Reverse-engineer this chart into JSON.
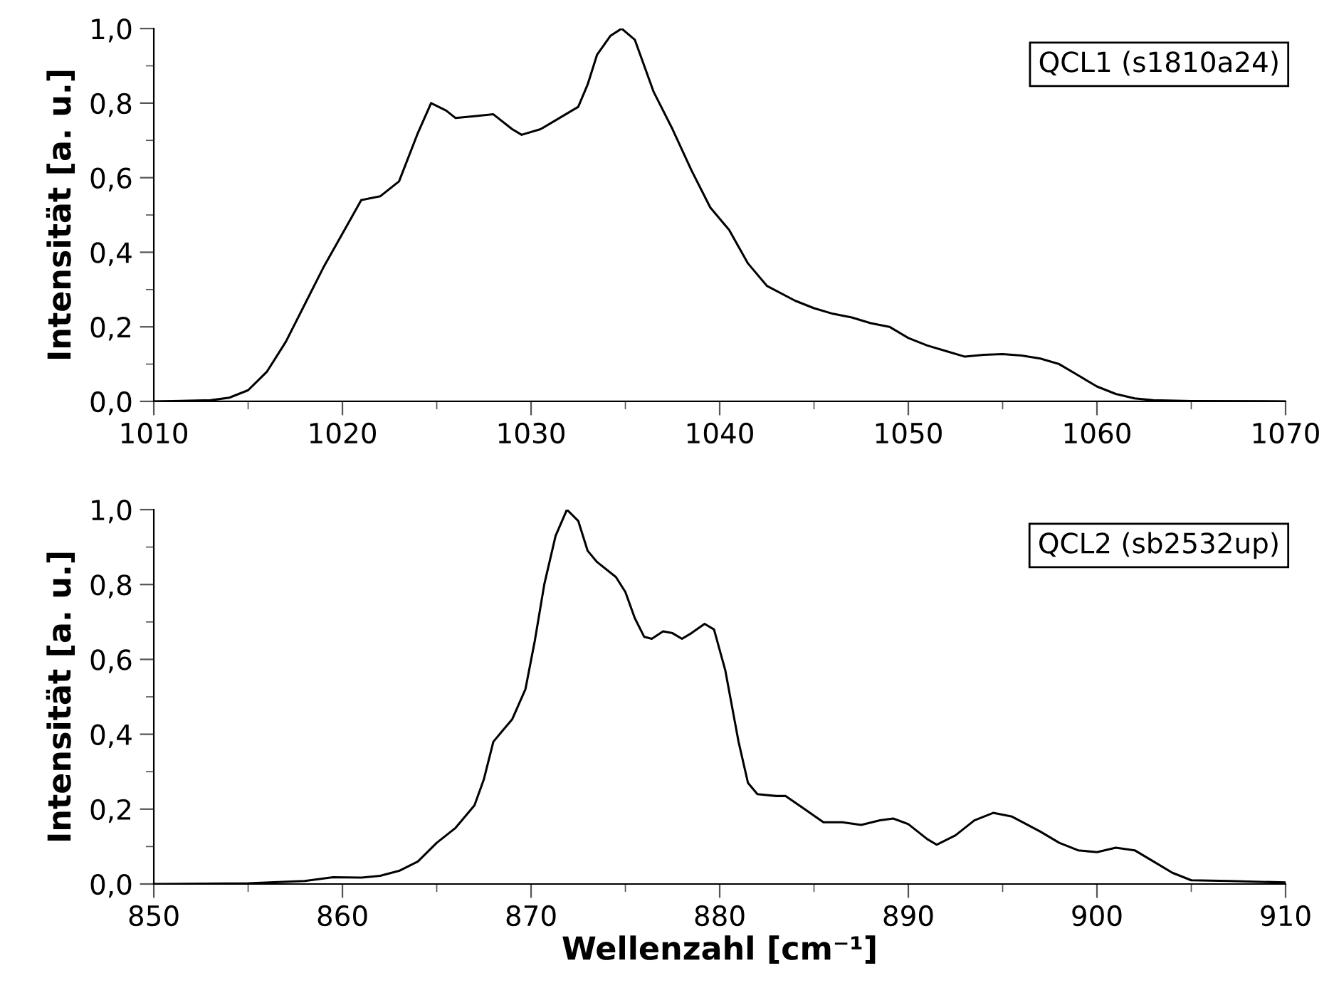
{
  "chart_data": [
    {
      "type": "line",
      "ylabel": "Intensität [a. u.]",
      "annotations": [
        "QCL1 (s1810a24)"
      ],
      "xlim": [
        1010,
        1070
      ],
      "xticks": [
        1010,
        1020,
        1030,
        1040,
        1050,
        1060,
        1070
      ],
      "ylim": [
        0,
        1.0
      ],
      "yticks": [
        {
          "value": 0,
          "label": "0,0"
        },
        {
          "value": 0.2,
          "label": "0,2"
        },
        {
          "value": 0.4,
          "label": "0,4"
        },
        {
          "value": 0.6,
          "label": "0,6"
        },
        {
          "value": 0.8,
          "label": "0,8"
        },
        {
          "value": 1.0,
          "label": "1,0"
        }
      ],
      "grid": false,
      "legend": false,
      "marker": "none",
      "line_style": "solid",
      "series": [
        {
          "color": "#000000",
          "x": [
            1010,
            1013,
            1014,
            1015,
            1016,
            1017,
            1018,
            1019,
            1020,
            1021,
            1022,
            1023,
            1024,
            1024.7,
            1025.5,
            1026,
            1027,
            1028,
            1029,
            1029.5,
            1030.5,
            1031.5,
            1032.5,
            1033,
            1033.5,
            1034.2,
            1034.8,
            1035.5,
            1036.5,
            1037.5,
            1038.5,
            1039.5,
            1040.5,
            1041.5,
            1042.5,
            1044,
            1045,
            1046,
            1047,
            1048,
            1049,
            1050,
            1051,
            1052,
            1053,
            1054,
            1055,
            1056,
            1057,
            1058,
            1059,
            1060,
            1061,
            1062,
            1063,
            1065,
            1070
          ],
          "values": [
            0,
            0.003,
            0.01,
            0.03,
            0.08,
            0.16,
            0.26,
            0.36,
            0.45,
            0.54,
            0.55,
            0.59,
            0.72,
            0.8,
            0.78,
            0.76,
            0.765,
            0.77,
            0.73,
            0.715,
            0.73,
            0.76,
            0.79,
            0.85,
            0.93,
            0.98,
            1.0,
            0.97,
            0.83,
            0.73,
            0.62,
            0.52,
            0.46,
            0.37,
            0.31,
            0.27,
            0.25,
            0.235,
            0.225,
            0.21,
            0.2,
            0.17,
            0.15,
            0.135,
            0.12,
            0.125,
            0.127,
            0.123,
            0.115,
            0.1,
            0.07,
            0.04,
            0.02,
            0.008,
            0.003,
            0.001,
            0
          ]
        }
      ]
    },
    {
      "type": "line",
      "xlabel": "Wellenzahl [cm⁻¹]",
      "ylabel": "Intensität [a. u.]",
      "annotations": [
        "QCL2 (sb2532up)"
      ],
      "xlim": [
        850,
        910
      ],
      "xticks": [
        850,
        860,
        870,
        880,
        890,
        900,
        910
      ],
      "ylim": [
        0,
        1.0
      ],
      "yticks": [
        {
          "value": 0,
          "label": "0,0"
        },
        {
          "value": 0.2,
          "label": "0,2"
        },
        {
          "value": 0.4,
          "label": "0,4"
        },
        {
          "value": 0.6,
          "label": "0,6"
        },
        {
          "value": 0.8,
          "label": "0,8"
        },
        {
          "value": 1.0,
          "label": "1,0"
        }
      ],
      "grid": false,
      "legend": false,
      "marker": "none",
      "line_style": "solid",
      "series": [
        {
          "color": "#000000",
          "x": [
            850,
            855,
            858,
            859.5,
            861,
            862,
            863,
            864,
            865,
            866,
            867,
            867.5,
            868,
            868.5,
            869,
            869.7,
            870.2,
            870.7,
            871.3,
            871.9,
            872.5,
            873,
            873.5,
            874.5,
            875,
            875.5,
            876,
            876.4,
            877,
            877.5,
            878,
            878.5,
            879.2,
            879.7,
            880.3,
            881,
            881.5,
            882,
            883,
            883.5,
            884.5,
            885.5,
            886.5,
            887.5,
            888.5,
            889.2,
            890,
            891,
            891.5,
            892.5,
            893.5,
            894.5,
            895.5,
            897,
            898,
            899,
            900,
            901,
            902,
            903,
            904,
            905,
            907,
            910
          ],
          "values": [
            0,
            0.002,
            0.008,
            0.018,
            0.017,
            0.022,
            0.035,
            0.06,
            0.11,
            0.15,
            0.21,
            0.28,
            0.38,
            0.41,
            0.44,
            0.52,
            0.65,
            0.8,
            0.93,
            1.0,
            0.97,
            0.89,
            0.86,
            0.82,
            0.78,
            0.71,
            0.66,
            0.655,
            0.675,
            0.67,
            0.655,
            0.67,
            0.695,
            0.68,
            0.57,
            0.38,
            0.27,
            0.24,
            0.235,
            0.235,
            0.2,
            0.165,
            0.165,
            0.158,
            0.17,
            0.175,
            0.16,
            0.12,
            0.105,
            0.13,
            0.17,
            0.19,
            0.18,
            0.14,
            0.11,
            0.09,
            0.085,
            0.097,
            0.09,
            0.06,
            0.03,
            0.01,
            0.008,
            0.004
          ]
        }
      ]
    }
  ]
}
